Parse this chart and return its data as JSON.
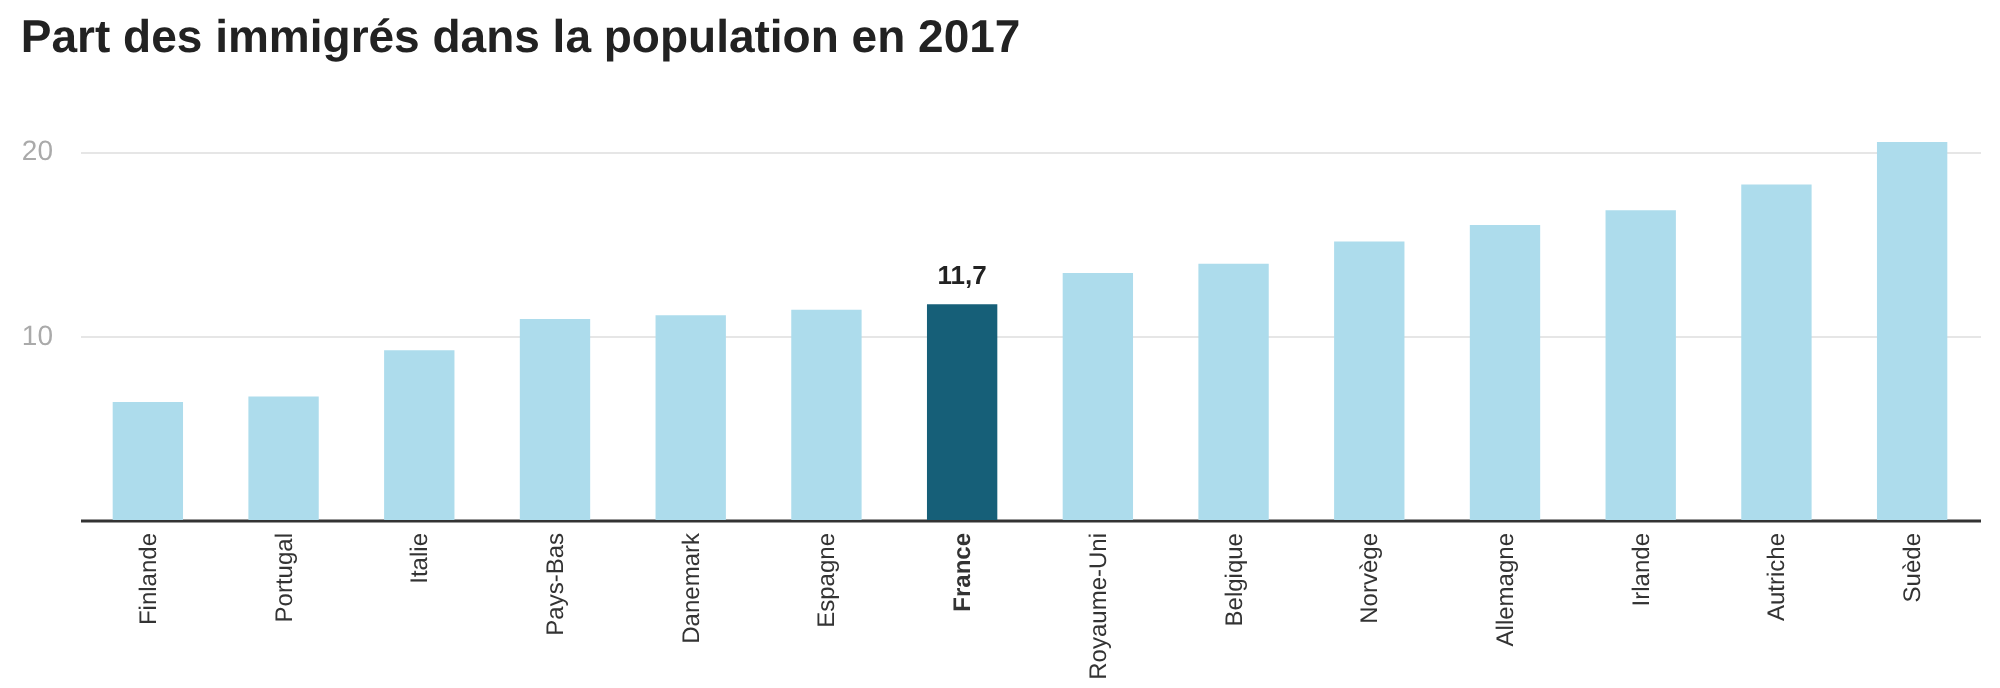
{
  "chart_data": {
    "type": "bar",
    "title": "Part des immigrés dans la population en 2017",
    "categories": [
      "Finlande",
      "Portugal",
      "Italie",
      "Pays-Bas",
      "Danemark",
      "Espagne",
      "France",
      "Royaume-Uni",
      "Belgique",
      "Norvège",
      "Allemagne",
      "Irlande",
      "Autriche",
      "Suède"
    ],
    "values": [
      6.4,
      6.7,
      9.2,
      10.9,
      11.1,
      11.4,
      11.7,
      13.4,
      13.9,
      15.1,
      16.0,
      16.8,
      18.2,
      20.5
    ],
    "colors": [
      "#addcec",
      "#addcec",
      "#addcec",
      "#addcec",
      "#addcec",
      "#addcec",
      "#165f78",
      "#addcec",
      "#addcec",
      "#addcec",
      "#addcec",
      "#addcec",
      "#addcec",
      "#addcec"
    ],
    "value_labels": [
      null,
      null,
      null,
      null,
      null,
      null,
      "11,7",
      null,
      null,
      null,
      null,
      null,
      null,
      null
    ],
    "ylim": [
      0,
      20.5
    ],
    "yticks": [
      10,
      20
    ],
    "grid": "y"
  }
}
